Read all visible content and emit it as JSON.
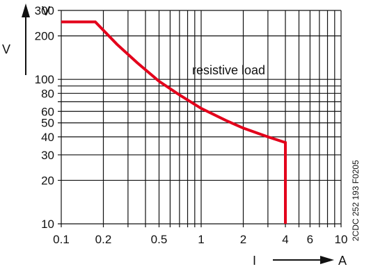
{
  "chart_data": {
    "type": "line",
    "x_scale": "log",
    "y_scale": "log",
    "xlim": [
      0.1,
      10
    ],
    "ylim": [
      10,
      300
    ],
    "xunit": "A",
    "yunit_top": "V",
    "yunit_side": "V",
    "xaxis_label": "I",
    "x_ticks": [
      0.1,
      0.2,
      0.5,
      1,
      2,
      4,
      6,
      10
    ],
    "x_tick_labels": [
      "0.1",
      "0.2",
      "0.5",
      "1",
      "2",
      "4",
      "6",
      "10"
    ],
    "x_minor_grid": [
      0.3,
      0.4,
      0.6,
      0.7,
      0.8,
      0.9,
      3,
      5,
      7,
      8,
      9
    ],
    "y_ticks": [
      10,
      20,
      30,
      40,
      50,
      60,
      80,
      100,
      200,
      300
    ],
    "y_tick_labels": [
      "10",
      "20",
      "30",
      "40",
      "50",
      "60",
      "80",
      "100",
      "200",
      "300"
    ],
    "y_minor_grid": [
      70,
      90
    ],
    "grid": true,
    "annotation": "resistive load",
    "side_code": "2CDC 252 193 F0205",
    "series": [
      {
        "color": "#e3001b",
        "x": [
          0.1,
          0.175,
          0.25,
          0.35,
          0.5,
          0.7,
          1,
          1.5,
          2,
          3,
          4,
          4,
          4
        ],
        "y": [
          250,
          250,
          175,
          130,
          97,
          78,
          63,
          52,
          46,
          40,
          36.5,
          36.5,
          10
        ]
      }
    ]
  }
}
